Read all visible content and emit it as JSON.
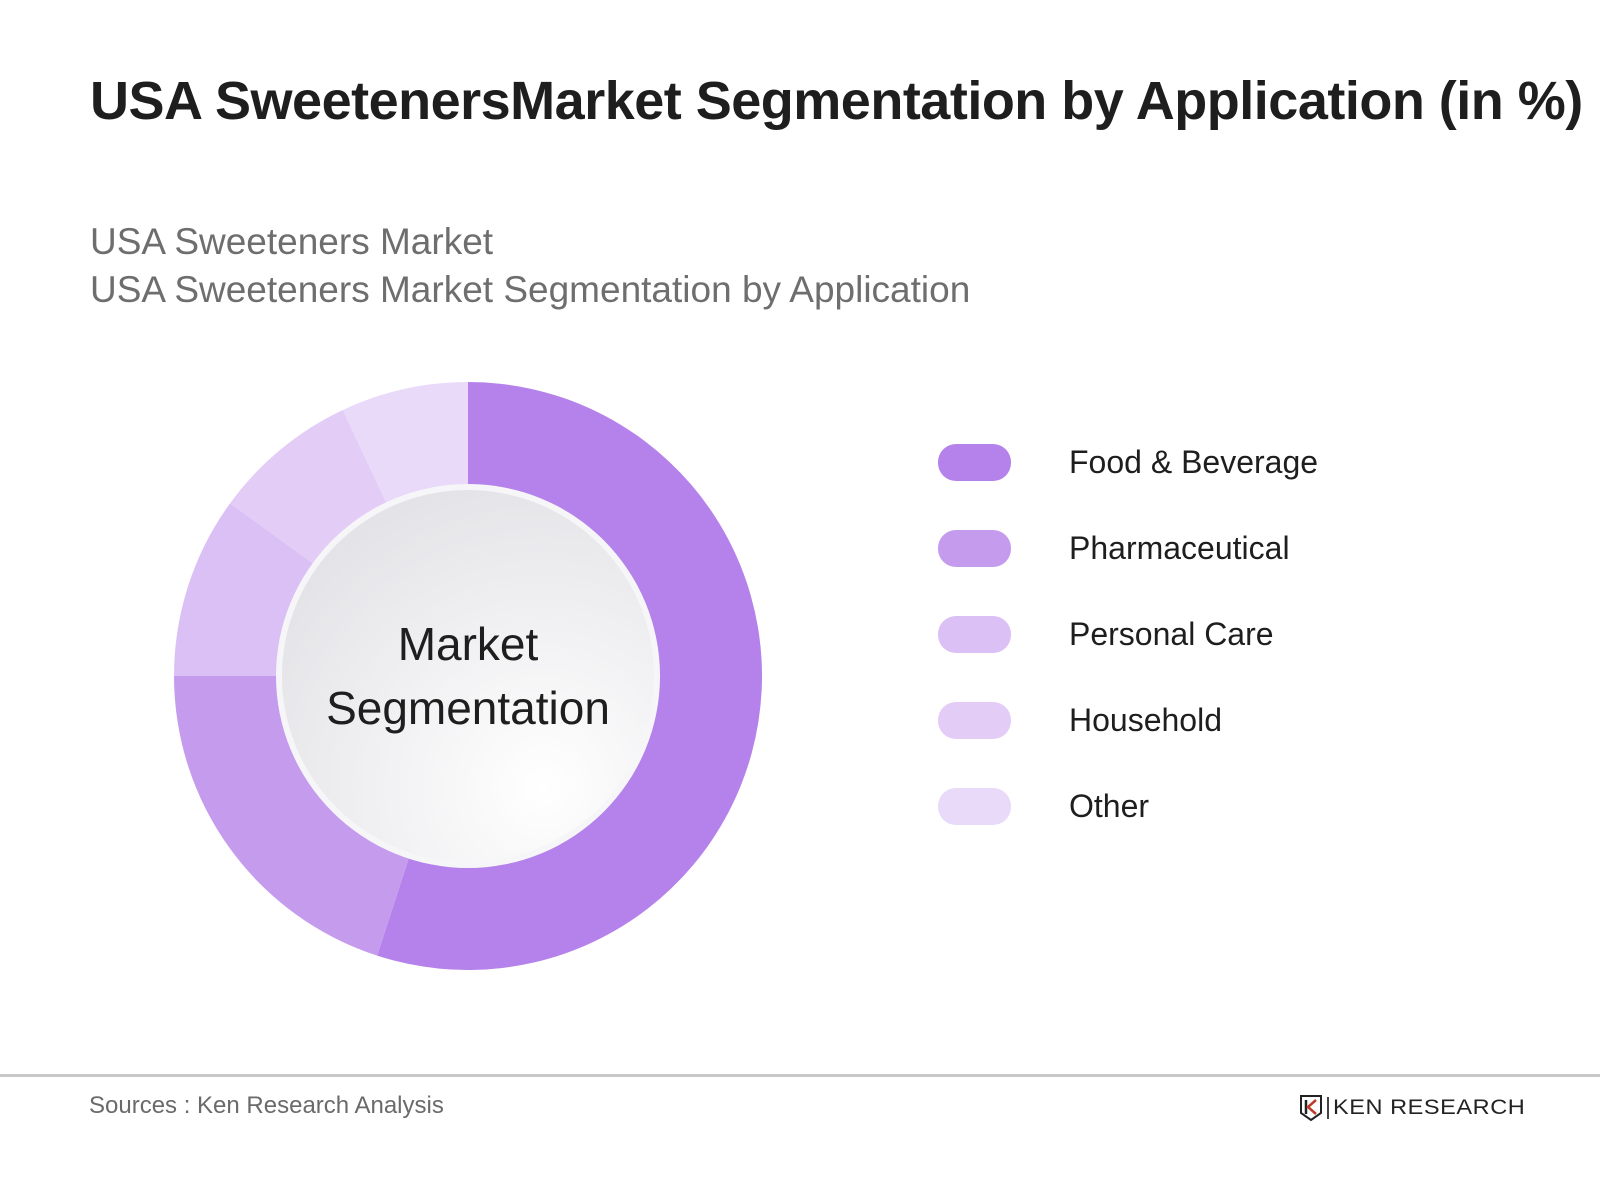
{
  "header": {
    "title": "USA SweetenersMarket Segmentation by Application (in %)",
    "subtitle_line1": "USA Sweeteners Market",
    "subtitle_line2": "USA Sweeteners Market Segmentation by Application"
  },
  "center_label": {
    "line1": "Market",
    "line2": "Segmentation"
  },
  "legend": [
    {
      "label": "Food & Beverage",
      "color": "#b482ea"
    },
    {
      "label": "Pharmaceutical",
      "color": "#c59bee"
    },
    {
      "label": "Personal Care",
      "color": "#dbc0f5"
    },
    {
      "label": "Household",
      "color": "#e3cdf7"
    },
    {
      "label": "Other",
      "color": "#e9daf9"
    }
  ],
  "footer": {
    "source": "Sources : Ken Research Analysis",
    "logo_text": "KEN RESEARCH"
  },
  "chart_data": {
    "type": "pie",
    "subtype": "donut",
    "title": "USA SweetenersMarket Segmentation by Application (in %)",
    "subtitle": "USA Sweeteners Market Segmentation by Application",
    "center_text": "Market Segmentation",
    "categories": [
      "Food & Beverage",
      "Pharmaceutical",
      "Personal Care",
      "Household",
      "Other"
    ],
    "values": [
      55,
      20,
      10,
      8,
      7
    ],
    "colors": [
      "#b482ea",
      "#c59bee",
      "#dbc0f5",
      "#e3cdf7",
      "#e9daf9"
    ],
    "unit": "%",
    "start_angle": "12 o'clock, clockwise",
    "legend_position": "right",
    "data_labels": false
  }
}
